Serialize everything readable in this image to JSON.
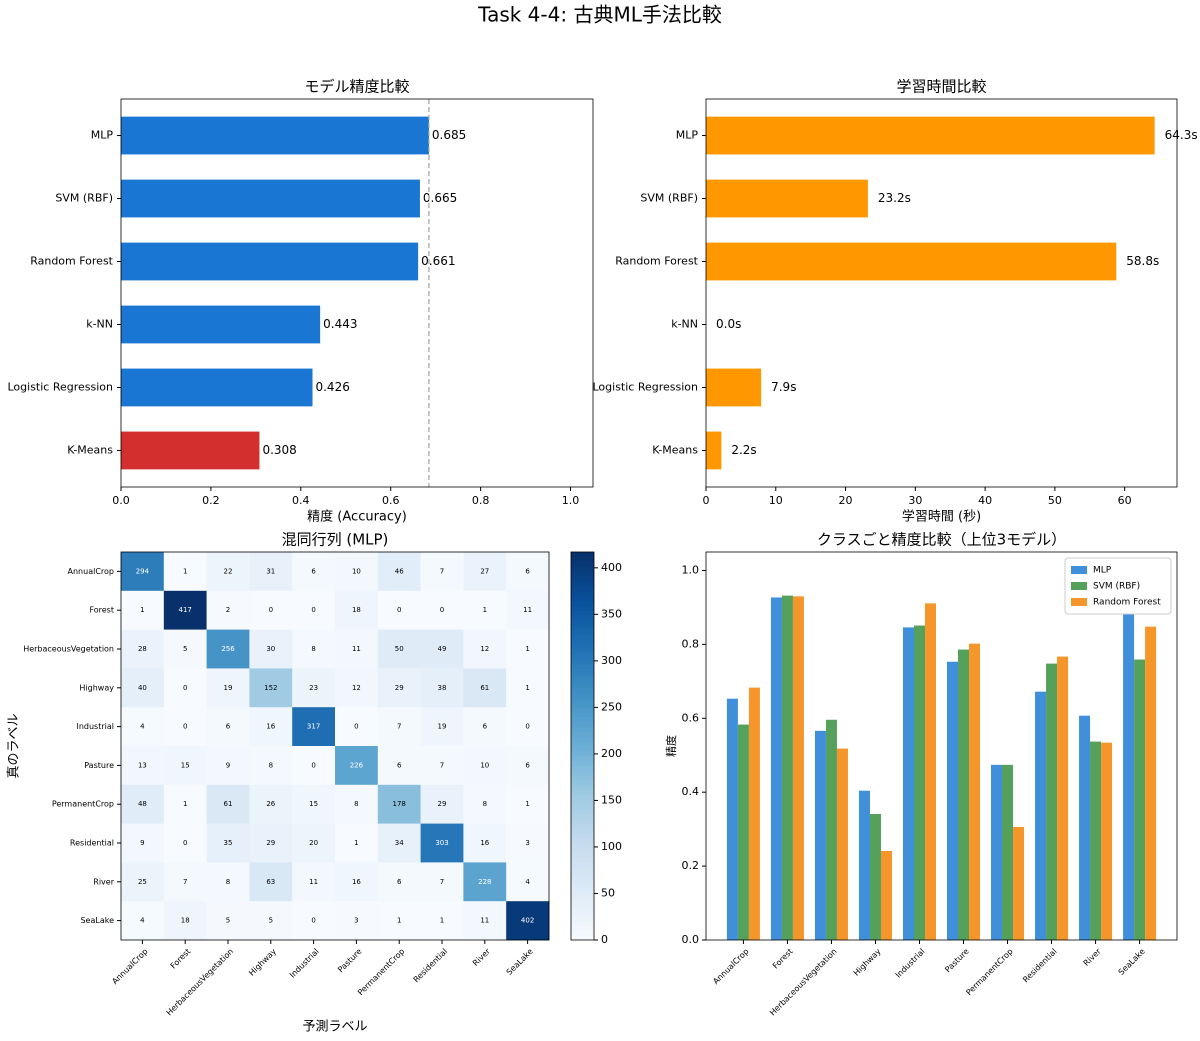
{
  "title": "Task 4-4: 古典ML手法比較",
  "chart_data": [
    {
      "type": "hbar",
      "title": "モデル精度比較",
      "categories": [
        "MLP",
        "SVM (RBF)",
        "Random Forest",
        "k-NN",
        "Logistic Regression",
        "K-Means"
      ],
      "values": [
        0.685,
        0.665,
        0.661,
        0.443,
        0.426,
        0.308
      ],
      "colors": [
        "#1976d2",
        "#1976d2",
        "#1976d2",
        "#1976d2",
        "#1976d2",
        "#d32f2f"
      ],
      "xlabel": "精度 (Accuracy)",
      "xlim": [
        0,
        1.05
      ],
      "xticks": [
        {
          "value": 0,
          "label": "0.0"
        },
        {
          "value": 0.2,
          "label": "0.2"
        },
        {
          "value": 0.4,
          "label": "0.4"
        },
        {
          "value": 0.6,
          "label": "0.6"
        },
        {
          "value": 0.8,
          "label": "0.8"
        },
        {
          "value": 1,
          "label": "1.0"
        }
      ],
      "reference_line": 0.685
    },
    {
      "type": "hbar",
      "title": "学習時間比較",
      "categories": [
        "MLP",
        "SVM (RBF)",
        "Random Forest",
        "k-NN",
        "Logistic Regression",
        "K-Means"
      ],
      "values": [
        64.3,
        23.2,
        58.8,
        0.0,
        7.9,
        2.2
      ],
      "value_labels": [
        "64.3s",
        "23.2s",
        "58.8s",
        "0.0s",
        "7.9s",
        "2.2s"
      ],
      "color": "#ff9800",
      "xlabel": "学習時間 (秒)",
      "xlim": [
        0,
        67.5
      ],
      "xticks": [
        0,
        10,
        20,
        30,
        40,
        50,
        60
      ]
    },
    {
      "type": "heatmap",
      "title": "混同行列 (MLP)",
      "categories": [
        "AnnualCrop",
        "Forest",
        "HerbaceousVegetation",
        "Highway",
        "Industrial",
        "Pasture",
        "PermanentCrop",
        "Residential",
        "River",
        "SeaLake"
      ],
      "matrix": [
        [
          294,
          1,
          22,
          31,
          6,
          10,
          46,
          7,
          27,
          6
        ],
        [
          1,
          417,
          2,
          0,
          0,
          18,
          0,
          0,
          1,
          11
        ],
        [
          28,
          5,
          256,
          30,
          8,
          11,
          50,
          49,
          12,
          1
        ],
        [
          40,
          0,
          19,
          152,
          23,
          12,
          29,
          38,
          61,
          1
        ],
        [
          4,
          0,
          6,
          16,
          317,
          0,
          7,
          19,
          6,
          0
        ],
        [
          13,
          15,
          9,
          8,
          0,
          226,
          6,
          7,
          10,
          6
        ],
        [
          48,
          1,
          61,
          26,
          15,
          8,
          178,
          29,
          8,
          1
        ],
        [
          9,
          0,
          35,
          29,
          20,
          1,
          34,
          303,
          16,
          3
        ],
        [
          25,
          7,
          8,
          63,
          11,
          16,
          6,
          7,
          228,
          4
        ],
        [
          4,
          18,
          5,
          5,
          0,
          3,
          1,
          1,
          11,
          402
        ]
      ],
      "xlabel": "予測ラベル",
      "ylabel": "真のラベル",
      "colormap": "Blues",
      "clim": [
        0,
        417
      ],
      "cticks": [
        0,
        50,
        100,
        150,
        200,
        250,
        300,
        350,
        400
      ]
    },
    {
      "type": "grouped_bar",
      "title": "クラスごと精度比較（上位3モデル）",
      "categories": [
        "AnnualCrop",
        "Forest",
        "HerbaceousVegetation",
        "Highway",
        "Industrial",
        "Pasture",
        "PermanentCrop",
        "Residential",
        "River",
        "SeaLake"
      ],
      "series": [
        {
          "name": "MLP",
          "color": "#3f8fdb",
          "values": [
            0.653,
            0.927,
            0.566,
            0.404,
            0.846,
            0.753,
            0.474,
            0.672,
            0.607,
            0.892
          ]
        },
        {
          "name": "SVM (RBF)",
          "color": "#55a05a",
          "values": [
            0.583,
            0.932,
            0.596,
            0.341,
            0.851,
            0.786,
            0.474,
            0.748,
            0.537,
            0.759
          ]
        },
        {
          "name": "Random Forest",
          "color": "#f5962a",
          "values": [
            0.683,
            0.93,
            0.518,
            0.241,
            0.911,
            0.802,
            0.306,
            0.767,
            0.534,
            0.848
          ]
        }
      ],
      "ylabel": "精度",
      "ylim": [
        0,
        1.05
      ],
      "yticks": [
        {
          "value": 0,
          "label": "0.0"
        },
        {
          "value": 0.2,
          "label": "0.2"
        },
        {
          "value": 0.4,
          "label": "0.4"
        },
        {
          "value": 0.6,
          "label": "0.6"
        },
        {
          "value": 0.8,
          "label": "0.8"
        },
        {
          "value": 1,
          "label": "1.0"
        }
      ],
      "legend": "upper right"
    }
  ]
}
